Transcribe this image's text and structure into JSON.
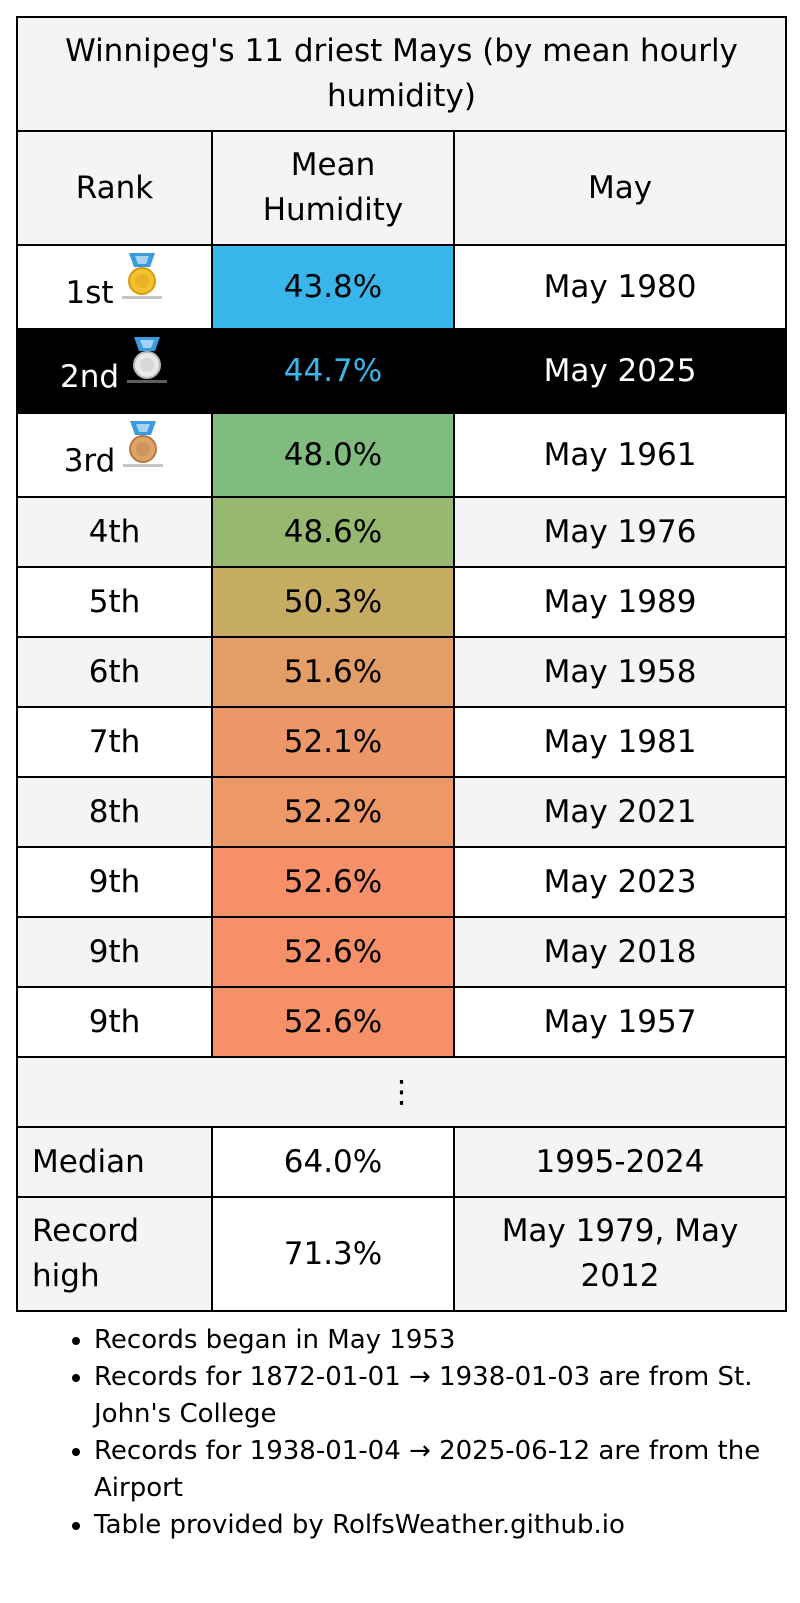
{
  "title": "Winnipeg's 11 driest Mays (by mean hourly humidity)",
  "headers": {
    "rank": "Rank",
    "value": "Mean Humidity",
    "period": "May"
  },
  "rows": [
    {
      "rank": "1st",
      "value": "43.8%",
      "period": "May 1980",
      "medal": "gold-medal-icon",
      "color": "#38b6ec"
    },
    {
      "rank": "2nd",
      "value": "44.7%",
      "period": "May 2025",
      "medal": "silver-medal-icon",
      "color": "#38b6ec",
      "highlight": true
    },
    {
      "rank": "3rd",
      "value": "48.0%",
      "period": "May 1961",
      "medal": "bronze-medal-icon",
      "color": "#7fbc7d"
    },
    {
      "rank": "4th",
      "value": "48.6%",
      "period": "May 1976",
      "color": "#97b86f"
    },
    {
      "rank": "5th",
      "value": "50.3%",
      "period": "May 1989",
      "color": "#c6ab62"
    },
    {
      "rank": "6th",
      "value": "51.6%",
      "period": "May 1958",
      "color": "#e39d66"
    },
    {
      "rank": "7th",
      "value": "52.1%",
      "period": "May 1981",
      "color": "#ec9767"
    },
    {
      "rank": "8th",
      "value": "52.2%",
      "period": "May 2021",
      "color": "#ee9767"
    },
    {
      "rank": "9th",
      "value": "52.6%",
      "period": "May 2023",
      "color": "#f59069"
    },
    {
      "rank": "9th",
      "value": "52.6%",
      "period": "May 2018",
      "color": "#f59069"
    },
    {
      "rank": "9th",
      "value": "52.6%",
      "period": "May 1957",
      "color": "#f59069"
    }
  ],
  "ellipsis": "⋮",
  "median": {
    "label": "Median",
    "value": "64.0%",
    "period": "1995-2024"
  },
  "record_high": {
    "label": "Record high",
    "value": "71.3%",
    "period": "May 1979, May 2012"
  },
  "notes": [
    "Records began in May 1953",
    "Records for 1872-01-01 → 1938-01-03 are from St. John's College",
    "Records for 1938-01-04 → 2025-06-12 are from the Airport",
    "Table provided by RolfsWeather.github.io"
  ]
}
